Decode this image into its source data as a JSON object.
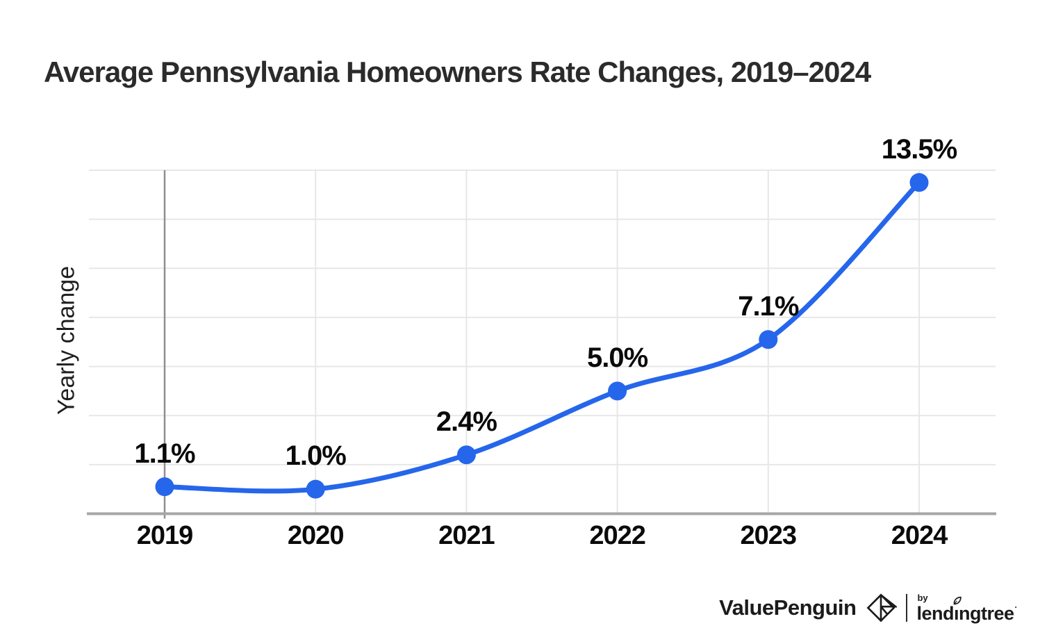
{
  "title": "Average Pennsylvania Homeowners Rate Changes, 2019–2024",
  "chart_data": {
    "type": "line",
    "title": "Average Pennsylvania Homeowners Rate Changes, 2019–2024",
    "categories": [
      "2019",
      "2020",
      "2021",
      "2022",
      "2023",
      "2024"
    ],
    "series": [
      {
        "name": "Yearly change",
        "values": [
          1.1,
          1.0,
          2.4,
          5.0,
          7.1,
          13.5
        ]
      }
    ],
    "point_labels": [
      "1.1%",
      "1.0%",
      "2.4%",
      "5.0%",
      "7.1%",
      "13.5%"
    ],
    "xlabel": "",
    "ylabel": "Yearly change",
    "ylim": [
      0,
      14
    ],
    "grid_step": 2,
    "grid": true,
    "legend": "none",
    "line_color": "#2566eb",
    "marker": "circle",
    "grid_color": "#e7e7e7",
    "first_gridline_color": "#8f8f8f",
    "axis_color": "#a6a6a6"
  },
  "footer": {
    "brand": "ValuePenguin",
    "by_label": "by",
    "partner": "lendingtree",
    "mark": "·"
  }
}
